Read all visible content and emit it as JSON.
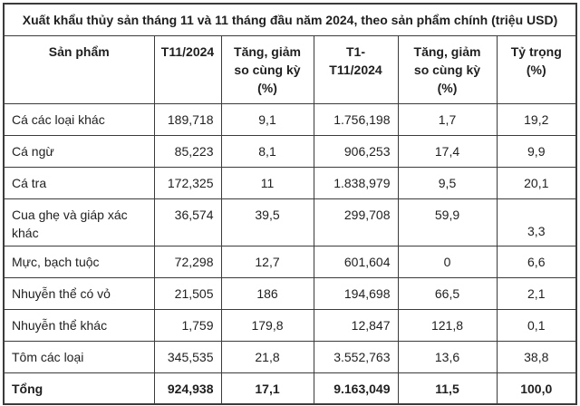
{
  "title": "Xuất khẩu thủy sản tháng 11 và 11 tháng đầu năm 2024, theo sản phẩm chính (triệu USD)",
  "table": {
    "columns": [
      {
        "label": "Sản phẩm"
      },
      {
        "label": "T11/2024"
      },
      {
        "label": "Tăng, giảm\nso cùng kỳ\n(%)"
      },
      {
        "label": "T1-\nT11/2024"
      },
      {
        "label": "Tăng, giảm\nso cùng kỳ\n(%)"
      },
      {
        "label": "Tỷ trọng\n(%)"
      }
    ],
    "rows": [
      {
        "cells": [
          "Cá các loại khác",
          "189,718",
          "9,1",
          "1.756,198",
          "1,7",
          "19,2"
        ]
      },
      {
        "cells": [
          "Cá ngừ",
          "85,223",
          "8,1",
          "906,253",
          "17,4",
          "9,9"
        ]
      },
      {
        "cells": [
          "Cá tra",
          "172,325",
          "11",
          "1.838,979",
          "9,5",
          "20,1"
        ]
      },
      {
        "cells": [
          "Cua ghẹ và giáp xác khác",
          "36,574",
          "39,5",
          "299,708",
          "59,9",
          "3,3"
        ]
      },
      {
        "cells": [
          "Mực, bạch tuộc",
          "72,298",
          "12,7",
          "601,604",
          "0",
          "6,6"
        ]
      },
      {
        "cells": [
          "Nhuyễn thể có vỏ",
          "21,505",
          "186",
          "194,698",
          "66,5",
          "2,1"
        ]
      },
      {
        "cells": [
          "Nhuyễn thể khác",
          "1,759",
          "179,8",
          "12,847",
          "121,8",
          "0,1"
        ]
      },
      {
        "cells": [
          "Tôm các loại",
          "345,535",
          "21,8",
          "3.552,763",
          "13,6",
          "38,8"
        ]
      }
    ],
    "total": {
      "cells": [
        "Tổng",
        "924,938",
        "17,1",
        "9.163,049",
        "11,5",
        "100,0"
      ]
    }
  }
}
